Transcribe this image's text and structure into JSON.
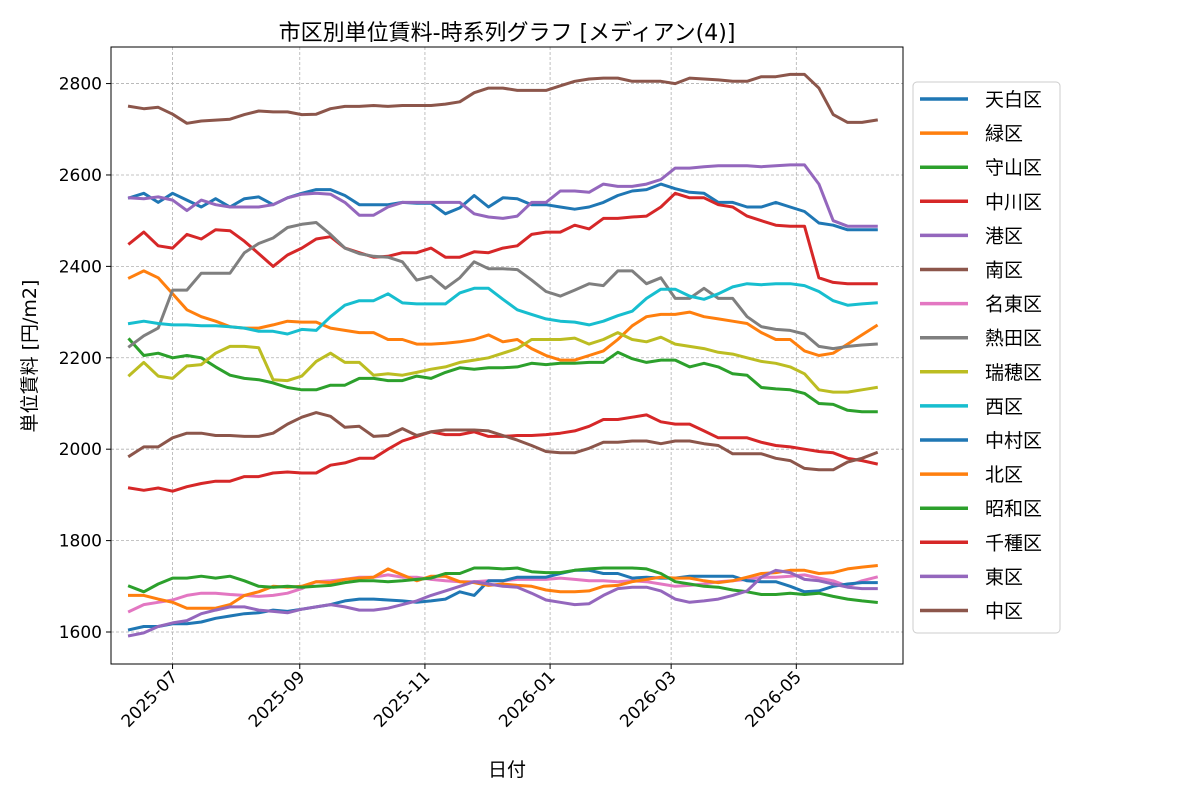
{
  "chart_data": {
    "type": "line",
    "title": "市区別単位賃料-時系列グラフ [メディアン(4)]",
    "xlabel": "日付",
    "ylabel": "単位賃料 [円/m2]",
    "xlim": [
      "2025-06-01",
      "2026-06-22"
    ],
    "ylim": [
      1530,
      2880
    ],
    "yticks": [
      1600,
      1800,
      2000,
      2200,
      2400,
      2600,
      2800
    ],
    "xticks": [
      "2025-07",
      "2025-09",
      "2025-11",
      "2026-01",
      "2026-03",
      "2026-05"
    ],
    "grid": true,
    "legend_position": "right",
    "dates": [
      "2025-06-10",
      "2025-06-17",
      "2025-06-24",
      "2025-07-01",
      "2025-07-08",
      "2025-07-15",
      "2025-07-22",
      "2025-07-29",
      "2025-08-05",
      "2025-08-12",
      "2025-08-19",
      "2025-08-26",
      "2025-09-02",
      "2025-09-09",
      "2025-09-16",
      "2025-09-23",
      "2025-09-30",
      "2025-10-07",
      "2025-10-14",
      "2025-10-21",
      "2025-10-28",
      "2025-11-04",
      "2025-11-11",
      "2025-11-18",
      "2025-11-25",
      "2025-12-02",
      "2025-12-09",
      "2025-12-16",
      "2025-12-23",
      "2025-12-30",
      "2026-01-06",
      "2026-01-13",
      "2026-01-20",
      "2026-01-27",
      "2026-02-03",
      "2026-02-10",
      "2026-02-17",
      "2026-02-24",
      "2026-03-03",
      "2026-03-10",
      "2026-03-17",
      "2026-03-24",
      "2026-03-31",
      "2026-04-07",
      "2026-04-14",
      "2026-04-21",
      "2026-04-28",
      "2026-05-05",
      "2026-05-12",
      "2026-05-19",
      "2026-05-26",
      "2026-06-02",
      "2026-06-09"
    ],
    "series": [
      {
        "name": "天白区",
        "color": "#1f77b4",
        "values": [
          2550,
          2560,
          2540,
          2560,
          2545,
          2530,
          2548,
          2530,
          2548,
          2552,
          2535,
          2550,
          2560,
          2568,
          2568,
          2555,
          2535,
          2535,
          2535,
          2540,
          2538,
          2538,
          2515,
          2528,
          2555,
          2530,
          2550,
          2548,
          2535,
          2535,
          2530,
          2525,
          2530,
          2540,
          2555,
          2565,
          2568,
          2580,
          2570,
          2562,
          2560,
          2540,
          2540,
          2530,
          2530,
          2540,
          2530,
          2520,
          2495,
          2490,
          2480,
          2480,
          2480
        ]
      },
      {
        "name": "緑区",
        "color": "#ff7f0e",
        "values": [
          2375,
          2390,
          2375,
          2340,
          2305,
          2290,
          2280,
          2268,
          2265,
          2265,
          2272,
          2280,
          2278,
          2278,
          2265,
          2260,
          2255,
          2255,
          2240,
          2240,
          2230,
          2230,
          2232,
          2235,
          2240,
          2250,
          2235,
          2240,
          2220,
          2205,
          2195,
          2195,
          2205,
          2215,
          2240,
          2270,
          2290,
          2295,
          2295,
          2300,
          2290,
          2285,
          2280,
          2275,
          2255,
          2240,
          2240,
          2215,
          2205,
          2210,
          2230,
          2250,
          2270
        ]
      },
      {
        "name": "守山区",
        "color": "#2ca02c",
        "values": [
          2240,
          2205,
          2210,
          2200,
          2205,
          2200,
          2180,
          2162,
          2155,
          2152,
          2145,
          2135,
          2130,
          2130,
          2140,
          2140,
          2155,
          2155,
          2150,
          2150,
          2160,
          2155,
          2168,
          2178,
          2175,
          2178,
          2178,
          2180,
          2188,
          2185,
          2188,
          2188,
          2190,
          2190,
          2212,
          2198,
          2190,
          2195,
          2195,
          2180,
          2188,
          2180,
          2165,
          2162,
          2135,
          2132,
          2130,
          2122,
          2100,
          2098,
          2085,
          2082,
          2082
        ]
      },
      {
        "name": "中川区",
        "color": "#d62728",
        "values": [
          2450,
          2475,
          2445,
          2440,
          2470,
          2460,
          2480,
          2478,
          2455,
          2428,
          2400,
          2425,
          2440,
          2460,
          2465,
          2440,
          2430,
          2420,
          2422,
          2430,
          2430,
          2440,
          2420,
          2420,
          2432,
          2430,
          2440,
          2445,
          2470,
          2475,
          2475,
          2490,
          2482,
          2505,
          2505,
          2508,
          2510,
          2530,
          2560,
          2550,
          2550,
          2535,
          2530,
          2510,
          2500,
          2490,
          2488,
          2488,
          2375,
          2365,
          2362,
          2362,
          2362
        ]
      },
      {
        "name": "港区",
        "color": "#9467bd",
        "values": [
          2550,
          2548,
          2552,
          2545,
          2522,
          2545,
          2535,
          2530,
          2530,
          2530,
          2535,
          2550,
          2558,
          2560,
          2558,
          2540,
          2512,
          2512,
          2530,
          2540,
          2540,
          2540,
          2540,
          2540,
          2515,
          2508,
          2505,
          2510,
          2540,
          2540,
          2565,
          2565,
          2562,
          2580,
          2575,
          2575,
          2580,
          2590,
          2615,
          2615,
          2618,
          2620,
          2620,
          2620,
          2618,
          2620,
          2622,
          2622,
          2580,
          2500,
          2488,
          2488,
          2488
        ]
      },
      {
        "name": "南区",
        "color": "#8c564b",
        "values": [
          2750,
          2745,
          2748,
          2733,
          2713,
          2718,
          2720,
          2722,
          2732,
          2740,
          2738,
          2738,
          2732,
          2733,
          2745,
          2750,
          2750,
          2752,
          2750,
          2752,
          2752,
          2752,
          2755,
          2760,
          2780,
          2790,
          2790,
          2785,
          2785,
          2785,
          2795,
          2805,
          2810,
          2812,
          2812,
          2805,
          2805,
          2805,
          2800,
          2812,
          2810,
          2808,
          2805,
          2805,
          2815,
          2815,
          2820,
          2820,
          2790,
          2732,
          2715,
          2715,
          2720
        ]
      },
      {
        "name": "名東区",
        "color": "#e377c2",
        "values": [
          1645,
          1660,
          1665,
          1670,
          1680,
          1685,
          1685,
          1682,
          1680,
          1678,
          1680,
          1685,
          1695,
          1710,
          1712,
          1715,
          1720,
          1720,
          1725,
          1720,
          1720,
          1715,
          1712,
          1710,
          1710,
          1712,
          1712,
          1715,
          1715,
          1715,
          1718,
          1715,
          1712,
          1712,
          1710,
          1712,
          1710,
          1705,
          1700,
          1702,
          1705,
          1710,
          1712,
          1715,
          1720,
          1720,
          1722,
          1725,
          1718,
          1712,
          1700,
          1712,
          1720
        ]
      },
      {
        "name": "熱田区",
        "color": "#7f7f7f",
        "values": [
          2225,
          2248,
          2265,
          2348,
          2348,
          2385,
          2385,
          2385,
          2430,
          2450,
          2462,
          2485,
          2492,
          2496,
          2470,
          2440,
          2428,
          2422,
          2420,
          2410,
          2370,
          2378,
          2352,
          2375,
          2410,
          2395,
          2395,
          2393,
          2370,
          2345,
          2335,
          2348,
          2362,
          2358,
          2390,
          2390,
          2362,
          2375,
          2330,
          2330,
          2352,
          2330,
          2330,
          2290,
          2268,
          2262,
          2260,
          2252,
          2225,
          2220,
          2225,
          2228,
          2230
        ]
      },
      {
        "name": "瑞穂区",
        "color": "#bcbd22",
        "values": [
          2162,
          2190,
          2160,
          2155,
          2182,
          2185,
          2210,
          2225,
          2225,
          2222,
          2152,
          2150,
          2160,
          2192,
          2210,
          2190,
          2190,
          2162,
          2165,
          2162,
          2168,
          2175,
          2180,
          2190,
          2195,
          2200,
          2210,
          2220,
          2240,
          2240,
          2240,
          2243,
          2230,
          2240,
          2255,
          2240,
          2235,
          2245,
          2230,
          2225,
          2220,
          2212,
          2208,
          2200,
          2192,
          2188,
          2180,
          2165,
          2130,
          2125,
          2125,
          2130,
          2135
        ]
      },
      {
        "name": "西区",
        "color": "#17becf",
        "values": [
          2275,
          2280,
          2275,
          2272,
          2272,
          2270,
          2270,
          2268,
          2265,
          2258,
          2258,
          2252,
          2262,
          2260,
          2290,
          2315,
          2325,
          2325,
          2340,
          2320,
          2318,
          2318,
          2318,
          2342,
          2352,
          2352,
          2328,
          2305,
          2295,
          2285,
          2280,
          2278,
          2272,
          2280,
          2292,
          2302,
          2330,
          2350,
          2350,
          2335,
          2328,
          2340,
          2355,
          2362,
          2360,
          2362,
          2362,
          2358,
          2345,
          2325,
          2315,
          2318,
          2320
        ]
      },
      {
        "name": "中村区",
        "color": "#1f77b4",
        "values": [
          1605,
          1612,
          1612,
          1618,
          1618,
          1622,
          1630,
          1635,
          1640,
          1642,
          1648,
          1645,
          1650,
          1655,
          1660,
          1668,
          1672,
          1672,
          1670,
          1668,
          1665,
          1668,
          1672,
          1688,
          1680,
          1712,
          1712,
          1720,
          1720,
          1720,
          1728,
          1735,
          1735,
          1728,
          1728,
          1718,
          1720,
          1718,
          1718,
          1722,
          1722,
          1722,
          1722,
          1712,
          1710,
          1710,
          1700,
          1688,
          1690,
          1700,
          1705,
          1708,
          1708
        ]
      },
      {
        "name": "北区",
        "color": "#ff7f0e",
        "values": [
          1680,
          1680,
          1672,
          1665,
          1652,
          1652,
          1652,
          1660,
          1680,
          1688,
          1700,
          1698,
          1700,
          1710,
          1708,
          1715,
          1718,
          1720,
          1738,
          1725,
          1712,
          1722,
          1722,
          1710,
          1708,
          1702,
          1705,
          1702,
          1700,
          1692,
          1688,
          1688,
          1690,
          1700,
          1702,
          1710,
          1715,
          1720,
          1718,
          1718,
          1712,
          1708,
          1712,
          1720,
          1728,
          1730,
          1735,
          1735,
          1728,
          1730,
          1738,
          1742,
          1745
        ]
      },
      {
        "name": "昭和区",
        "color": "#2ca02c",
        "values": [
          1700,
          1688,
          1705,
          1718,
          1718,
          1722,
          1718,
          1722,
          1712,
          1700,
          1698,
          1700,
          1698,
          1700,
          1702,
          1708,
          1712,
          1712,
          1710,
          1712,
          1715,
          1718,
          1728,
          1728,
          1740,
          1740,
          1738,
          1740,
          1732,
          1730,
          1730,
          1735,
          1738,
          1740,
          1740,
          1740,
          1738,
          1728,
          1710,
          1705,
          1700,
          1698,
          1692,
          1688,
          1682,
          1682,
          1685,
          1682,
          1685,
          1678,
          1672,
          1668,
          1665
        ]
      },
      {
        "name": "千種区",
        "color": "#d62728",
        "values": [
          1915,
          1910,
          1915,
          1908,
          1918,
          1925,
          1930,
          1930,
          1940,
          1940,
          1948,
          1950,
          1948,
          1948,
          1965,
          1970,
          1980,
          1980,
          2000,
          2018,
          2028,
          2038,
          2032,
          2032,
          2038,
          2028,
          2028,
          2030,
          2030,
          2032,
          2035,
          2040,
          2050,
          2065,
          2065,
          2070,
          2075,
          2060,
          2055,
          2055,
          2040,
          2025,
          2025,
          2025,
          2015,
          2008,
          2005,
          2000,
          1995,
          1992,
          1980,
          1975,
          1968
        ]
      },
      {
        "name": "東区",
        "color": "#9467bd",
        "values": [
          1592,
          1598,
          1612,
          1620,
          1625,
          1640,
          1648,
          1655,
          1655,
          1648,
          1645,
          1642,
          1650,
          1655,
          1660,
          1655,
          1648,
          1648,
          1652,
          1660,
          1668,
          1680,
          1690,
          1700,
          1710,
          1705,
          1700,
          1698,
          1685,
          1670,
          1665,
          1660,
          1662,
          1680,
          1695,
          1698,
          1698,
          1690,
          1672,
          1665,
          1668,
          1672,
          1680,
          1690,
          1720,
          1735,
          1730,
          1715,
          1712,
          1705,
          1698,
          1695,
          1695
        ]
      },
      {
        "name": "中区",
        "color": "#8c564b",
        "values": [
          1985,
          2005,
          2005,
          2025,
          2035,
          2035,
          2030,
          2030,
          2028,
          2028,
          2035,
          2055,
          2070,
          2080,
          2072,
          2048,
          2050,
          2028,
          2030,
          2045,
          2030,
          2038,
          2042,
          2042,
          2042,
          2040,
          2030,
          2020,
          2008,
          1995,
          1992,
          1992,
          2002,
          2015,
          2015,
          2018,
          2018,
          2012,
          2018,
          2018,
          2012,
          2008,
          1990,
          1990,
          1990,
          1980,
          1975,
          1958,
          1955,
          1955,
          1972,
          1980,
          1992
        ]
      }
    ]
  }
}
